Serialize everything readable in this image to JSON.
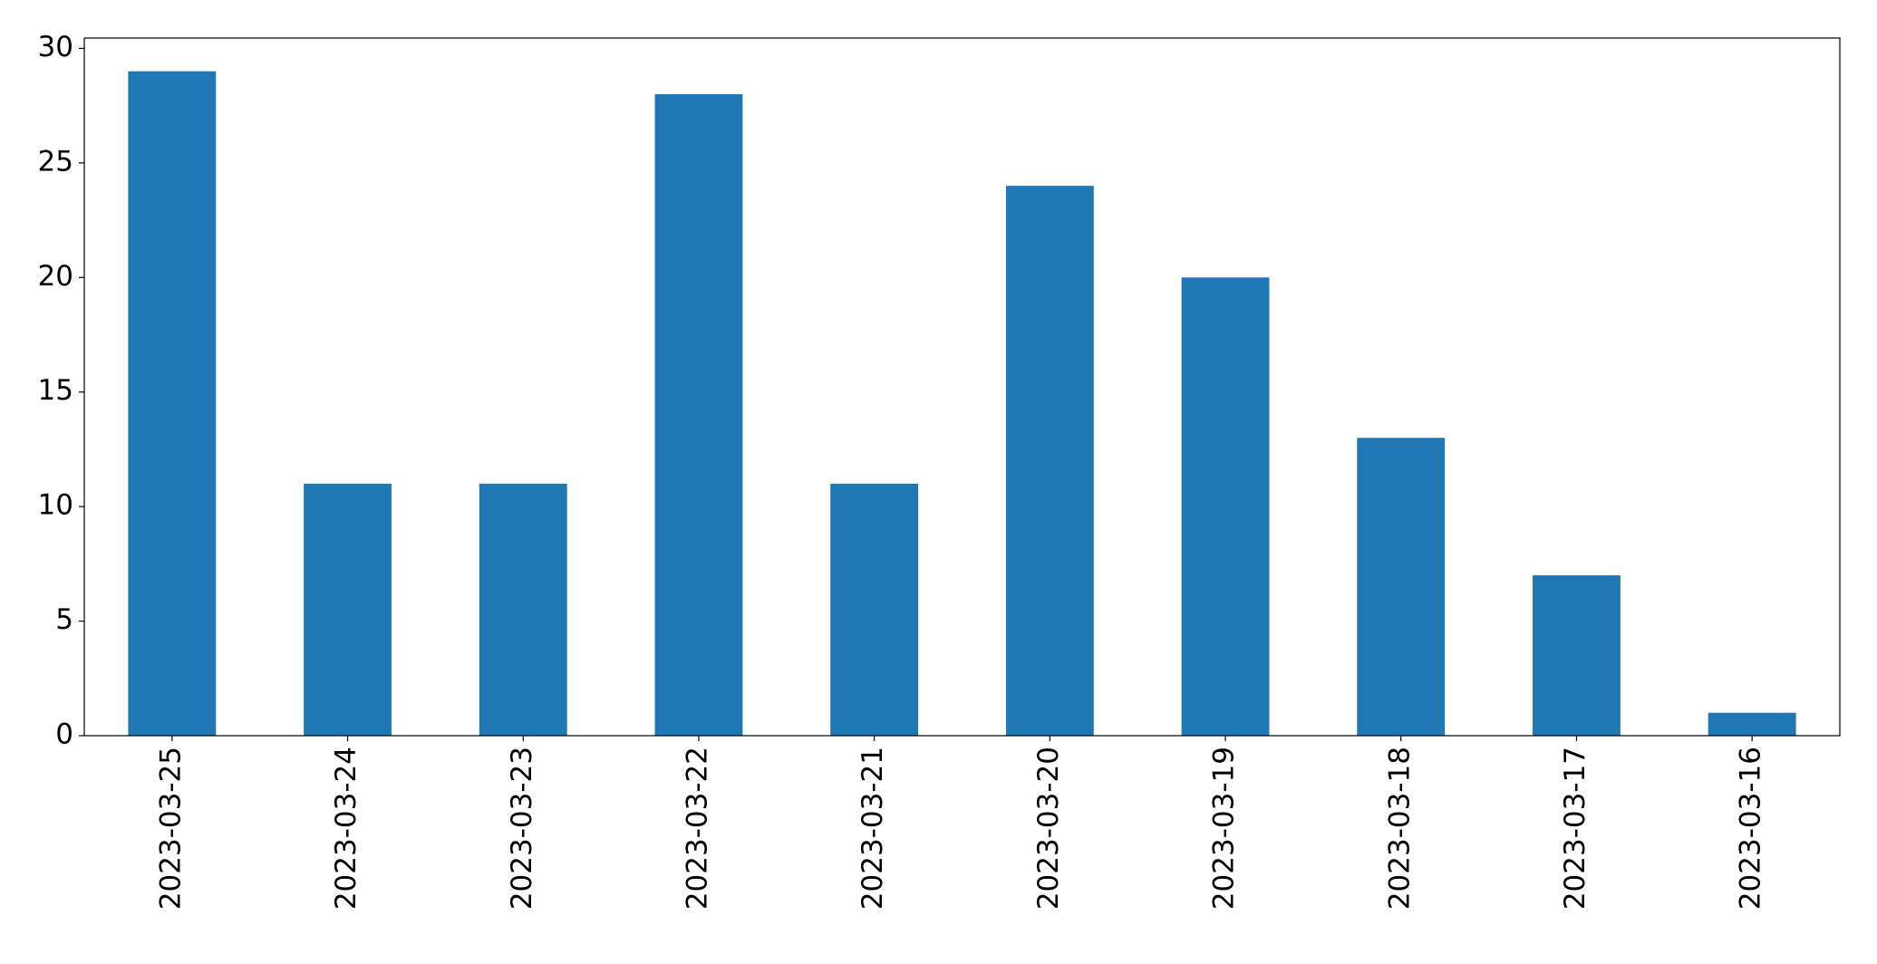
{
  "chart_data": {
    "type": "bar",
    "categories": [
      "2023-03-25",
      "2023-03-24",
      "2023-03-23",
      "2023-03-22",
      "2023-03-21",
      "2023-03-20",
      "2023-03-19",
      "2023-03-18",
      "2023-03-17",
      "2023-03-16"
    ],
    "values": [
      29,
      11,
      11,
      28,
      11,
      24,
      20,
      13,
      7,
      1
    ],
    "color": "#1f77b4",
    "ylim": [
      0,
      30.45
    ],
    "yticks": [
      0,
      5,
      10,
      15,
      20,
      25,
      30
    ],
    "grid": false
  }
}
